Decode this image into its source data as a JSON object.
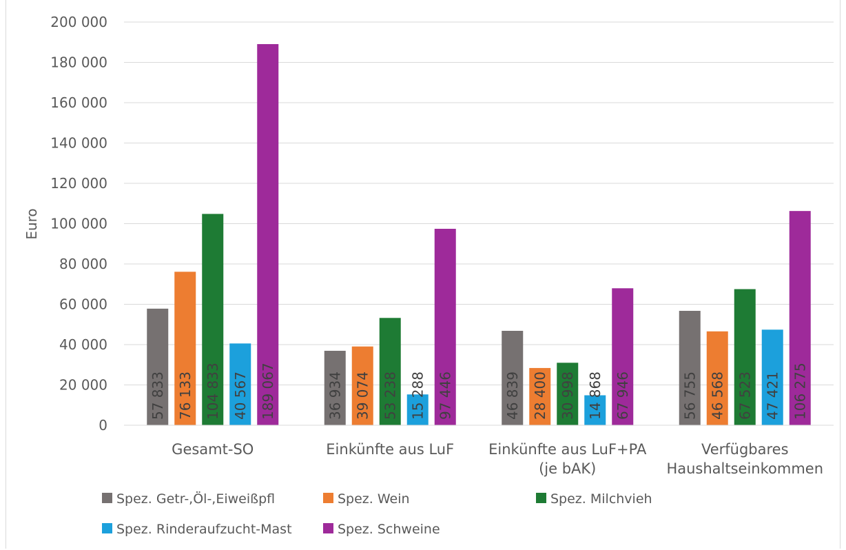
{
  "chart_data": {
    "type": "bar",
    "ylabel": "Euro",
    "ylim": [
      0,
      200000
    ],
    "yticks": [
      "0",
      "20 000",
      "40 000",
      "60 000",
      "80 000",
      "100 000",
      "120 000",
      "140 000",
      "160 000",
      "180 000",
      "200 000"
    ],
    "grid": true,
    "legend_position": "bottom",
    "categories": [
      [
        "Gesamt-SO"
      ],
      [
        "Einkünfte aus LuF"
      ],
      [
        "Einkünfte aus LuF+PA",
        "(je bAK)"
      ],
      [
        "Verfügbares",
        "Haushaltseinkommen"
      ]
    ],
    "series": [
      {
        "name": "Spez. Getr-,Öl-,Eiweißpfl",
        "color": "#767171",
        "values": [
          57833,
          36934,
          46839,
          56755
        ],
        "labels": [
          "57 833",
          "36 934",
          "46 839",
          "56 755"
        ]
      },
      {
        "name": "Spez. Wein",
        "color": "#ed7d31",
        "values": [
          76133,
          39074,
          28400,
          46568
        ],
        "labels": [
          "76 133",
          "39 074",
          "28 400",
          "46 568"
        ]
      },
      {
        "name": "Spez. Milchvieh",
        "color": "#1e7b34",
        "values": [
          104833,
          53238,
          30998,
          67523
        ],
        "labels": [
          "104 833",
          "53 238",
          "30 998",
          "67 523"
        ]
      },
      {
        "name": "Spez. Rinderaufzucht-Mast",
        "color": "#1ca0dc",
        "values": [
          40567,
          15288,
          14868,
          47421
        ],
        "labels": [
          "40 567",
          "15 288",
          "14 868",
          "47 421"
        ]
      },
      {
        "name": "Spez. Schweine",
        "color": "#9e2a9a",
        "values": [
          189067,
          97446,
          67946,
          106275
        ],
        "labels": [
          "189 067",
          "97 446",
          "67 946",
          "106 275"
        ]
      }
    ]
  }
}
